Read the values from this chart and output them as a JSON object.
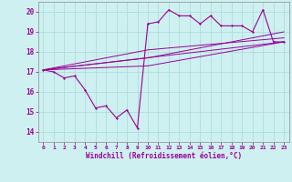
{
  "xlabel": "Windchill (Refroidissement éolien,°C)",
  "bg_color": "#cff0f0",
  "line_color": "#990099",
  "xlim": [
    -0.5,
    23.5
  ],
  "ylim": [
    13.5,
    20.5
  ],
  "xticks": [
    0,
    1,
    2,
    3,
    4,
    5,
    6,
    7,
    8,
    9,
    10,
    11,
    12,
    13,
    14,
    15,
    16,
    17,
    18,
    19,
    20,
    21,
    22,
    23
  ],
  "yticks": [
    14,
    15,
    16,
    17,
    18,
    19,
    20
  ],
  "grid_color": "#aadddd",
  "series": {
    "main": {
      "x": [
        0,
        1,
        2,
        3,
        4,
        5,
        6,
        7,
        8,
        9,
        10,
        11,
        12,
        13,
        14,
        15,
        16,
        17,
        18,
        19,
        20,
        21,
        22,
        23
      ],
      "y": [
        17.1,
        17.0,
        16.7,
        16.8,
        16.1,
        15.2,
        15.3,
        14.7,
        15.1,
        14.2,
        19.4,
        19.5,
        20.1,
        19.8,
        19.8,
        19.4,
        19.8,
        19.3,
        19.3,
        19.3,
        19.0,
        20.1,
        18.5,
        18.5
      ]
    },
    "line1": {
      "x": [
        0,
        23
      ],
      "y": [
        17.1,
        18.5
      ]
    },
    "line2": {
      "x": [
        0,
        10,
        23
      ],
      "y": [
        17.1,
        18.1,
        18.7
      ]
    },
    "line3": {
      "x": [
        0,
        10,
        23
      ],
      "y": [
        17.1,
        17.7,
        19.0
      ]
    },
    "line4": {
      "x": [
        0,
        10,
        23
      ],
      "y": [
        17.1,
        17.3,
        18.5
      ]
    }
  }
}
